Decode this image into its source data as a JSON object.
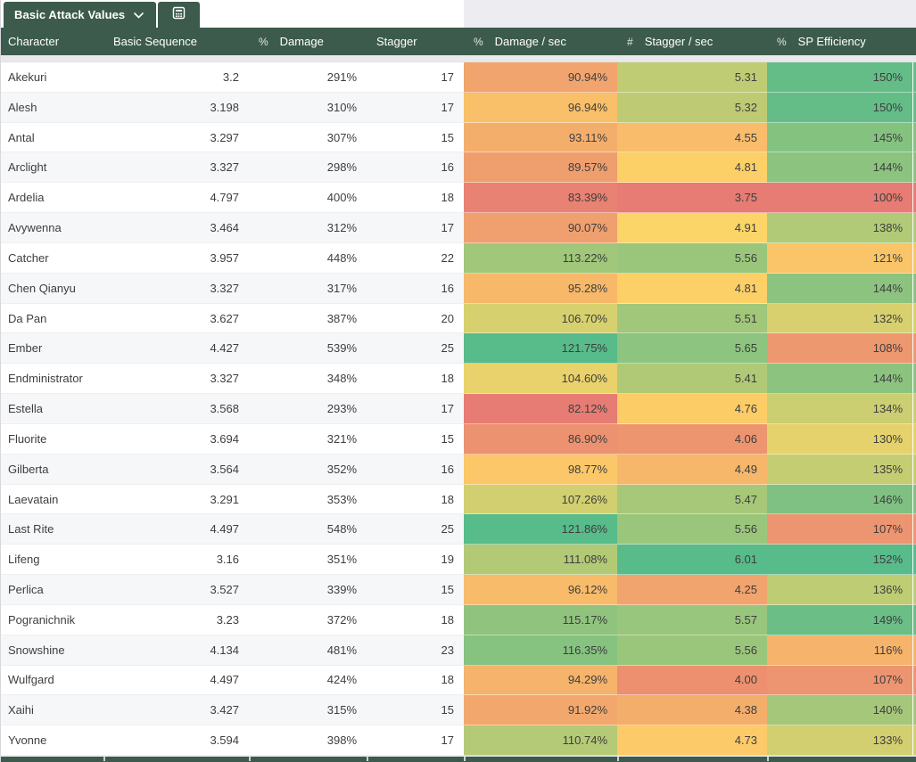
{
  "tabs": [
    {
      "label": "Basic Attack Values",
      "icon": "chevron-down"
    },
    {
      "label": "",
      "icon": "calculator-table"
    }
  ],
  "color_scale": {
    "min": "#E67C73",
    "mid": "#FFD666",
    "max": "#57BB8A"
  },
  "columns": [
    {
      "label": "Character",
      "type_icon": "",
      "key": "name",
      "align": "left",
      "colored": false
    },
    {
      "label": "Basic Sequence",
      "type_icon": "",
      "key": "seq",
      "align": "right",
      "colored": false
    },
    {
      "label": "Damage",
      "type_icon": "%",
      "key": "damage",
      "align": "right",
      "colored": false
    },
    {
      "label": "Stagger",
      "type_icon": "",
      "key": "stagger",
      "align": "right",
      "colored": false
    },
    {
      "label": "Damage / sec",
      "type_icon": "%",
      "key": "dps",
      "align": "right",
      "colored": true
    },
    {
      "label": "Stagger / sec",
      "type_icon": "#",
      "key": "sps",
      "align": "right",
      "colored": true
    },
    {
      "label": "SP Efficiency",
      "type_icon": "%",
      "key": "sp",
      "align": "right",
      "colored": true
    }
  ],
  "rows": [
    {
      "name": "Akekuri",
      "seq": "3.2",
      "damage": "291%",
      "stagger": "17",
      "dps": "90.94%",
      "sps": "5.31",
      "sp": "150%"
    },
    {
      "name": "Alesh",
      "seq": "3.198",
      "damage": "310%",
      "stagger": "17",
      "dps": "96.94%",
      "sps": "5.32",
      "sp": "150%"
    },
    {
      "name": "Antal",
      "seq": "3.297",
      "damage": "307%",
      "stagger": "15",
      "dps": "93.11%",
      "sps": "4.55",
      "sp": "145%"
    },
    {
      "name": "Arclight",
      "seq": "3.327",
      "damage": "298%",
      "stagger": "16",
      "dps": "89.57%",
      "sps": "4.81",
      "sp": "144%"
    },
    {
      "name": "Ardelia",
      "seq": "4.797",
      "damage": "400%",
      "stagger": "18",
      "dps": "83.39%",
      "sps": "3.75",
      "sp": "100%"
    },
    {
      "name": "Avywenna",
      "seq": "3.464",
      "damage": "312%",
      "stagger": "17",
      "dps": "90.07%",
      "sps": "4.91",
      "sp": "138%"
    },
    {
      "name": "Catcher",
      "seq": "3.957",
      "damage": "448%",
      "stagger": "22",
      "dps": "113.22%",
      "sps": "5.56",
      "sp": "121%"
    },
    {
      "name": "Chen Qianyu",
      "seq": "3.327",
      "damage": "317%",
      "stagger": "16",
      "dps": "95.28%",
      "sps": "4.81",
      "sp": "144%"
    },
    {
      "name": "Da Pan",
      "seq": "3.627",
      "damage": "387%",
      "stagger": "20",
      "dps": "106.70%",
      "sps": "5.51",
      "sp": "132%"
    },
    {
      "name": "Ember",
      "seq": "4.427",
      "damage": "539%",
      "stagger": "25",
      "dps": "121.75%",
      "sps": "5.65",
      "sp": "108%"
    },
    {
      "name": "Endministrator",
      "seq": "3.327",
      "damage": "348%",
      "stagger": "18",
      "dps": "104.60%",
      "sps": "5.41",
      "sp": "144%"
    },
    {
      "name": "Estella",
      "seq": "3.568",
      "damage": "293%",
      "stagger": "17",
      "dps": "82.12%",
      "sps": "4.76",
      "sp": "134%"
    },
    {
      "name": "Fluorite",
      "seq": "3.694",
      "damage": "321%",
      "stagger": "15",
      "dps": "86.90%",
      "sps": "4.06",
      "sp": "130%"
    },
    {
      "name": "Gilberta",
      "seq": "3.564",
      "damage": "352%",
      "stagger": "16",
      "dps": "98.77%",
      "sps": "4.49",
      "sp": "135%"
    },
    {
      "name": "Laevatain",
      "seq": "3.291",
      "damage": "353%",
      "stagger": "18",
      "dps": "107.26%",
      "sps": "5.47",
      "sp": "146%"
    },
    {
      "name": "Last Rite",
      "seq": "4.497",
      "damage": "548%",
      "stagger": "25",
      "dps": "121.86%",
      "sps": "5.56",
      "sp": "107%"
    },
    {
      "name": "Lifeng",
      "seq": "3.16",
      "damage": "351%",
      "stagger": "19",
      "dps": "111.08%",
      "sps": "6.01",
      "sp": "152%"
    },
    {
      "name": "Perlica",
      "seq": "3.527",
      "damage": "339%",
      "stagger": "15",
      "dps": "96.12%",
      "sps": "4.25",
      "sp": "136%"
    },
    {
      "name": "Pogranichnik",
      "seq": "3.23",
      "damage": "372%",
      "stagger": "18",
      "dps": "115.17%",
      "sps": "5.57",
      "sp": "149%"
    },
    {
      "name": "Snowshine",
      "seq": "4.134",
      "damage": "481%",
      "stagger": "23",
      "dps": "116.35%",
      "sps": "5.56",
      "sp": "116%"
    },
    {
      "name": "Wulfgard",
      "seq": "4.497",
      "damage": "424%",
      "stagger": "18",
      "dps": "94.29%",
      "sps": "4.00",
      "sp": "107%"
    },
    {
      "name": "Xaihi",
      "seq": "3.427",
      "damage": "315%",
      "stagger": "15",
      "dps": "91.92%",
      "sps": "4.38",
      "sp": "140%"
    },
    {
      "name": "Yvonne",
      "seq": "3.594",
      "damage": "398%",
      "stagger": "17",
      "dps": "110.74%",
      "sps": "4.73",
      "sp": "133%"
    }
  ]
}
